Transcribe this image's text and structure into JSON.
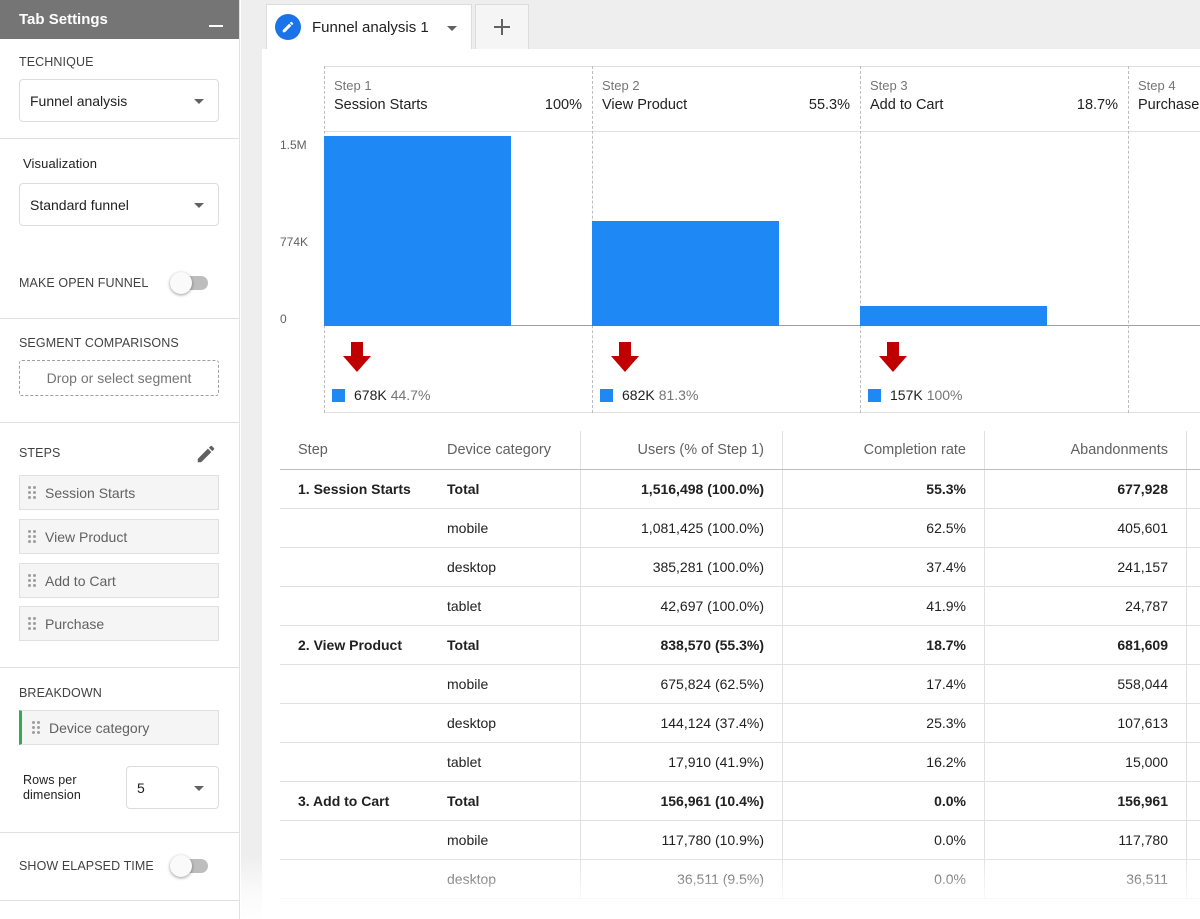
{
  "sidebar": {
    "title": "Tab Settings",
    "technique_label": "TECHNIQUE",
    "technique_value": "Funnel analysis",
    "visualization_label": "Visualization",
    "visualization_value": "Standard funnel",
    "open_funnel_label": "MAKE OPEN FUNNEL",
    "open_funnel_on": false,
    "segment_label": "SEGMENT COMPARISONS",
    "segment_placeholder": "Drop or select segment",
    "steps_label": "STEPS",
    "steps": [
      "Session Starts",
      "View Product",
      "Add to Cart",
      "Purchase"
    ],
    "breakdown_label": "BREAKDOWN",
    "breakdown_value": "Device category",
    "rows_per_dimension_label": "Rows per dimension",
    "rows_per_dimension_value": "5",
    "elapsed_time_label": "SHOW ELAPSED TIME",
    "elapsed_time_on": false
  },
  "tabs": {
    "active_label": "Funnel analysis 1",
    "add_icon": "plus-icon"
  },
  "chart": {
    "columns": [
      {
        "step": "Step 1",
        "name": "Session Starts",
        "pct": "100%",
        "abandon_value": "678K",
        "abandon_pct": "44.7%"
      },
      {
        "step": "Step 2",
        "name": "View Product",
        "pct": "55.3%",
        "abandon_value": "682K",
        "abandon_pct": "81.3%"
      },
      {
        "step": "Step 3",
        "name": "Add to Cart",
        "pct": "18.7%",
        "abandon_value": "157K",
        "abandon_pct": "100%"
      },
      {
        "step": "Step 4",
        "name": "Purchase",
        "pct": "",
        "abandon_value": "",
        "abandon_pct": ""
      }
    ],
    "yticks": [
      "1.5M",
      "774K",
      "0"
    ],
    "bar_color": "#1e88f5",
    "drop_arrow_color": "#c00000"
  },
  "chart_data": {
    "type": "bar",
    "categories": [
      "Session Starts",
      "View Product",
      "Add to Cart",
      "Purchase"
    ],
    "values": [
      1516498,
      838570,
      156961,
      0
    ],
    "yticks": [
      "1.5M",
      "774K",
      "0"
    ],
    "ylim": [
      0,
      1516498
    ],
    "legend": "bottom"
  },
  "table": {
    "headers": [
      "Step",
      "Device category",
      "Users (% of Step 1)",
      "Completion rate",
      "Abandonments"
    ],
    "rows": [
      {
        "step": "1. Session Starts",
        "device": "Total",
        "users": "1,516,498 (100.0%)",
        "completion": "55.3%",
        "abandon": "677,928",
        "total": true
      },
      {
        "step": "",
        "device": "mobile",
        "users": "1,081,425 (100.0%)",
        "completion": "62.5%",
        "abandon": "405,601",
        "total": false
      },
      {
        "step": "",
        "device": "desktop",
        "users": "385,281 (100.0%)",
        "completion": "37.4%",
        "abandon": "241,157",
        "total": false
      },
      {
        "step": "",
        "device": "tablet",
        "users": "42,697 (100.0%)",
        "completion": "41.9%",
        "abandon": "24,787",
        "total": false
      },
      {
        "step": "2. View Product",
        "device": "Total",
        "users": "838,570 (55.3%)",
        "completion": "18.7%",
        "abandon": "681,609",
        "total": true
      },
      {
        "step": "",
        "device": "mobile",
        "users": "675,824 (62.5%)",
        "completion": "17.4%",
        "abandon": "558,044",
        "total": false
      },
      {
        "step": "",
        "device": "desktop",
        "users": "144,124 (37.4%)",
        "completion": "25.3%",
        "abandon": "107,613",
        "total": false
      },
      {
        "step": "",
        "device": "tablet",
        "users": "17,910 (41.9%)",
        "completion": "16.2%",
        "abandon": "15,000",
        "total": false
      },
      {
        "step": "3. Add to Cart",
        "device": "Total",
        "users": "156,961 (10.4%)",
        "completion": "0.0%",
        "abandon": "156,961",
        "total": true
      },
      {
        "step": "",
        "device": "mobile",
        "users": "117,780 (10.9%)",
        "completion": "0.0%",
        "abandon": "117,780",
        "total": false
      },
      {
        "step": "",
        "device": "desktop",
        "users": "36,511 (9.5%)",
        "completion": "0.0%",
        "abandon": "36,511",
        "total": false
      }
    ]
  }
}
